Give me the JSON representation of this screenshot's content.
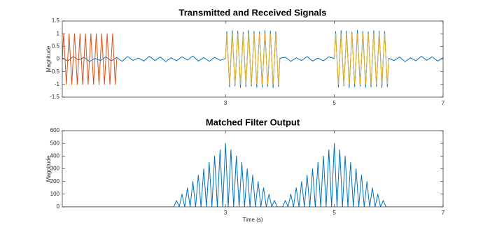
{
  "chart_data": [
    {
      "type": "line",
      "title": "Transmitted and Received Signals",
      "ylabel": "Magnitude",
      "xlim": [
        0,
        7
      ],
      "ylim": [
        -1.5,
        1.5
      ],
      "xticks": [
        3,
        5,
        7
      ],
      "yticks": [
        -1.5,
        -1,
        -0.5,
        0,
        0.5,
        1,
        1.5
      ],
      "series": [
        {
          "color": "#0072BD",
          "x": [
            0,
            0.1,
            0.2,
            0.3,
            0.4,
            0.5,
            0.6,
            0.7,
            0.8,
            0.9,
            1,
            1.1,
            1.2,
            1.3,
            1.4,
            1.5,
            1.6,
            1.7,
            1.8,
            1.9,
            2,
            2.1,
            2.2,
            2.3,
            2.4,
            2.5,
            2.6,
            2.7,
            2.8,
            2.9,
            3,
            3.025,
            3.05,
            3.075,
            3.1,
            3.125,
            3.15,
            3.175,
            3.2,
            3.225,
            3.25,
            3.275,
            3.3,
            3.325,
            3.35,
            3.375,
            3.4,
            3.425,
            3.45,
            3.475,
            3.5,
            3.525,
            3.55,
            3.575,
            3.6,
            3.625,
            3.65,
            3.675,
            3.7,
            3.725,
            3.75,
            3.775,
            3.8,
            3.825,
            3.85,
            3.875,
            3.9,
            3.925,
            3.95,
            3.975,
            4,
            4.1,
            4.2,
            4.3,
            4.4,
            4.5,
            4.6,
            4.7,
            4.8,
            4.9,
            5,
            5.025,
            5.05,
            5.075,
            5.1,
            5.125,
            5.15,
            5.175,
            5.2,
            5.225,
            5.25,
            5.275,
            5.3,
            5.325,
            5.35,
            5.375,
            5.4,
            5.425,
            5.45,
            5.475,
            5.5,
            5.525,
            5.55,
            5.575,
            5.6,
            5.625,
            5.65,
            5.675,
            5.7,
            5.725,
            5.75,
            5.775,
            5.8,
            5.825,
            5.85,
            5.875,
            5.9,
            5.925,
            5.95,
            5.975,
            6,
            6.1,
            6.2,
            6.3,
            6.4,
            6.5,
            6.6,
            6.7,
            6.8,
            6.9,
            7
          ],
          "values": [
            0.05,
            -0.08,
            0.1,
            -0.04,
            0.07,
            -0.1,
            0.03,
            -0.06,
            0.09,
            -0.07,
            0.06,
            -0.09,
            0.1,
            -0.05,
            0.04,
            -0.08,
            0.11,
            -0.06,
            0.08,
            -0.1,
            0.05,
            -0.07,
            0.09,
            -0.04,
            0.12,
            -0.08,
            0.06,
            -0.09,
            0.07,
            -0.05,
            0.02,
            1.08,
            -0.03,
            -1.1,
            0.04,
            1.12,
            0.01,
            -1.06,
            -0.02,
            1.1,
            0.03,
            -1.12,
            0.02,
            1.06,
            -0.04,
            -1.09,
            0.03,
            1.13,
            0.02,
            -1.07,
            -0.01,
            1.09,
            0.04,
            -1.11,
            0.02,
            1.07,
            -0.03,
            -1.1,
            0.01,
            1.12,
            0.03,
            -1.08,
            -0.02,
            1.1,
            0.04,
            -1.13,
            0.02,
            1.08,
            -0.01,
            -1.09,
            0.03,
            0.07,
            -0.09,
            0.05,
            -0.06,
            0.1,
            -0.08,
            0.04,
            -0.07,
            0.09,
            0.02,
            1.08,
            -0.03,
            -1.1,
            0.04,
            1.12,
            0.01,
            -1.06,
            -0.02,
            1.1,
            0.03,
            -1.12,
            0.02,
            1.06,
            -0.04,
            -1.09,
            0.03,
            1.13,
            0.02,
            -1.07,
            -0.01,
            1.09,
            0.04,
            -1.11,
            0.02,
            1.07,
            -0.03,
            -1.1,
            0.01,
            1.12,
            0.03,
            -1.08,
            -0.02,
            1.1,
            0.04,
            -1.13,
            0.02,
            1.08,
            -0.01,
            -1.09,
            0.03,
            -0.06,
            0.08,
            -0.1,
            0.05,
            -0.07,
            0.11,
            -0.05,
            0.09,
            -0.08,
            0.06
          ]
        },
        {
          "color": "#D95319",
          "x": [
            0,
            0.025,
            0.05,
            0.075,
            0.1,
            0.125,
            0.15,
            0.175,
            0.2,
            0.225,
            0.25,
            0.275,
            0.3,
            0.325,
            0.35,
            0.375,
            0.4,
            0.425,
            0.45,
            0.475,
            0.5,
            0.525,
            0.55,
            0.575,
            0.6,
            0.625,
            0.65,
            0.675,
            0.7,
            0.725,
            0.75,
            0.775,
            0.8,
            0.825,
            0.85,
            0.875,
            0.9,
            0.925,
            0.95,
            0.975,
            1
          ],
          "values": [
            0,
            1,
            0,
            -1,
            0,
            1,
            0,
            -1,
            0,
            1,
            0,
            -1,
            0,
            1,
            0,
            -1,
            0,
            1,
            0,
            -1,
            0,
            1,
            0,
            -1,
            0,
            1,
            0,
            -1,
            0,
            1,
            0,
            -1,
            0,
            1,
            0,
            -1,
            0,
            1,
            0,
            -1,
            0
          ]
        },
        {
          "color": "#EDB120",
          "x": [
            3,
            3.025,
            3.05,
            3.075,
            3.1,
            3.125,
            3.15,
            3.175,
            3.2,
            3.225,
            3.25,
            3.275,
            3.3,
            3.325,
            3.35,
            3.375,
            3.4,
            3.425,
            3.45,
            3.475,
            3.5,
            3.525,
            3.55,
            3.575,
            3.6,
            3.625,
            3.65,
            3.675,
            3.7,
            3.725,
            3.75,
            3.775,
            3.8,
            3.825,
            3.85,
            3.875,
            3.9,
            3.925,
            3.95,
            3.975,
            4
          ],
          "values": [
            0,
            1,
            0,
            -1,
            0,
            1,
            0,
            -1,
            0,
            1,
            0,
            -1,
            0,
            1,
            0,
            -1,
            0,
            1,
            0,
            -1,
            0,
            1,
            0,
            -1,
            0,
            1,
            0,
            -1,
            0,
            1,
            0,
            -1,
            0,
            1,
            0,
            -1,
            0,
            1,
            0,
            -1,
            0
          ]
        },
        {
          "color": "#EDB120",
          "x": [
            5,
            5.025,
            5.05,
            5.075,
            5.1,
            5.125,
            5.15,
            5.175,
            5.2,
            5.225,
            5.25,
            5.275,
            5.3,
            5.325,
            5.35,
            5.375,
            5.4,
            5.425,
            5.45,
            5.475,
            5.5,
            5.525,
            5.55,
            5.575,
            5.6,
            5.625,
            5.65,
            5.675,
            5.7,
            5.725,
            5.75,
            5.775,
            5.8,
            5.825,
            5.85,
            5.875,
            5.9,
            5.925,
            5.95,
            5.975,
            6
          ],
          "values": [
            0,
            1,
            0,
            -1,
            0,
            1,
            0,
            -1,
            0,
            1,
            0,
            -1,
            0,
            1,
            0,
            -1,
            0,
            1,
            0,
            -1,
            0,
            1,
            0,
            -1,
            0,
            1,
            0,
            -1,
            0,
            1,
            0,
            -1,
            0,
            1,
            0,
            -1,
            0,
            1,
            0,
            -1,
            0
          ]
        }
      ]
    },
    {
      "type": "line",
      "title": "Matched Filter Output",
      "ylabel": "Magnitude",
      "xlabel": "Time (s)",
      "xlim": [
        0,
        7
      ],
      "ylim": [
        0,
        600
      ],
      "xticks": [
        3,
        5,
        7
      ],
      "yticks": [
        0,
        100,
        200,
        300,
        400,
        500,
        600
      ],
      "series": [
        {
          "color": "#0072BD",
          "x": [
            0,
            2,
            2.05,
            2.1,
            2.15,
            2.2,
            2.25,
            2.3,
            2.35,
            2.4,
            2.45,
            2.5,
            2.55,
            2.6,
            2.65,
            2.7,
            2.75,
            2.8,
            2.85,
            2.9,
            2.95,
            3,
            3.05,
            3.1,
            3.15,
            3.2,
            3.25,
            3.3,
            3.35,
            3.4,
            3.45,
            3.5,
            3.55,
            3.6,
            3.65,
            3.7,
            3.75,
            3.8,
            3.85,
            3.9,
            3.95,
            4,
            4.05,
            4.1,
            4.15,
            4.2,
            4.25,
            4.3,
            4.35,
            4.4,
            4.45,
            4.5,
            4.55,
            4.6,
            4.65,
            4.7,
            4.75,
            4.8,
            4.85,
            4.9,
            4.95,
            5,
            5.05,
            5.1,
            5.15,
            5.2,
            5.25,
            5.3,
            5.35,
            5.4,
            5.45,
            5.5,
            5.55,
            5.6,
            5.65,
            5.7,
            5.75,
            5.8,
            5.85,
            5.9,
            5.95,
            6,
            7
          ],
          "values": [
            0,
            0,
            0,
            50,
            0,
            100,
            0,
            150,
            0,
            200,
            0,
            250,
            0,
            300,
            0,
            350,
            0,
            400,
            0,
            450,
            0,
            500,
            0,
            450,
            0,
            400,
            0,
            350,
            0,
            300,
            0,
            250,
            0,
            200,
            0,
            150,
            0,
            100,
            0,
            50,
            0,
            0,
            0,
            50,
            0,
            100,
            0,
            150,
            0,
            200,
            0,
            250,
            0,
            300,
            0,
            350,
            0,
            400,
            0,
            450,
            0,
            500,
            0,
            450,
            0,
            400,
            0,
            350,
            0,
            300,
            0,
            250,
            0,
            200,
            0,
            150,
            0,
            100,
            0,
            50,
            0,
            0,
            0
          ]
        }
      ]
    }
  ]
}
